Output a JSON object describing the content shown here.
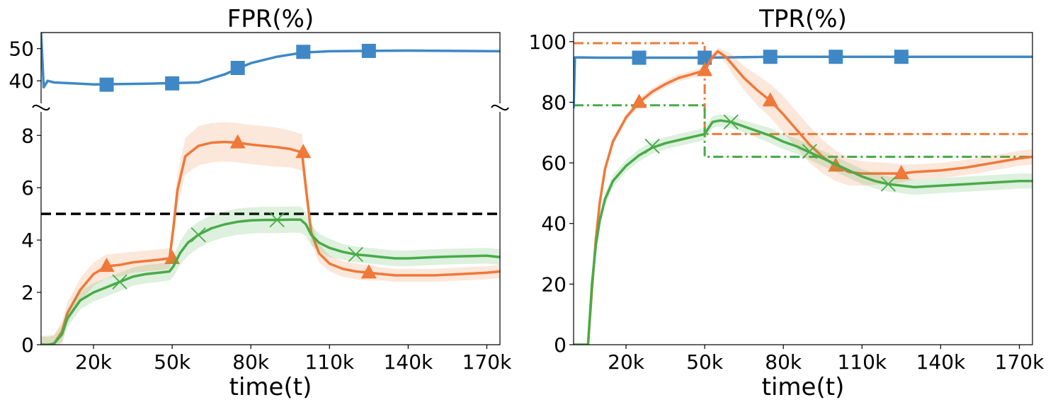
{
  "colors": {
    "blue": "#3f88c5",
    "orange": "#f07838",
    "green": "#48ab48",
    "black": "#000000"
  },
  "chart_data": [
    {
      "type": "line",
      "title": "FPR(%)",
      "xlabel": "time(t)",
      "ylabel": "",
      "broken_y_axis": true,
      "xlim": [
        0,
        175000
      ],
      "x_ticks": [
        20000,
        50000,
        80000,
        110000,
        140000,
        170000
      ],
      "x_tick_labels": [
        "20k",
        "50k",
        "80k",
        "110k",
        "140k",
        "170k"
      ],
      "upper_panel": {
        "ylim": [
          33,
          55
        ],
        "y_ticks": [
          40,
          50
        ],
        "y_tick_labels": [
          "40",
          "50"
        ],
        "series": [
          {
            "color": "blue",
            "marker": "square",
            "x": [
              0,
              1000,
              2500,
              5000,
              10000,
              20000,
              30000,
              40000,
              50000,
              60000,
              70000,
              75000,
              80000,
              90000,
              100000,
              110000,
              125000,
              140000,
              175000
            ],
            "y": [
              55,
              38,
              40,
              39.5,
              39.3,
              38.9,
              39,
              39.1,
              39.3,
              39.5,
              42,
              43.8,
              45.5,
              47.5,
              48.8,
              49.2,
              49.3,
              49.4,
              49.2
            ],
            "marker_x": [
              25000,
              50000,
              75000,
              100000,
              125000
            ],
            "marker_y": [
              38.8,
              39.2,
              44,
              49,
              49.3
            ]
          }
        ]
      },
      "lower_panel": {
        "ylim": [
          0,
          8.9
        ],
        "y_ticks": [
          0,
          2,
          4,
          6,
          8
        ],
        "y_tick_labels": [
          "0",
          "2",
          "4",
          "6",
          "8"
        ],
        "reference_line": {
          "y": 5,
          "color": "black",
          "style": "dashed"
        },
        "series": [
          {
            "color": "orange",
            "marker": "triangle",
            "x": [
              0,
              3000,
              5000,
              8000,
              10000,
              15000,
              20000,
              25000,
              30000,
              35000,
              40000,
              45000,
              49000,
              50500,
              52000,
              55000,
              60000,
              65000,
              70000,
              75000,
              80000,
              85000,
              90000,
              95000,
              99500,
              101000,
              103000,
              106000,
              110000,
              115000,
              120000,
              125000,
              130000,
              135000,
              140000,
              150000,
              160000,
              170000,
              175000
            ],
            "y": [
              0,
              0,
              0.05,
              0.5,
              1.2,
              2.1,
              2.7,
              3.0,
              3.05,
              3.15,
              3.2,
              3.25,
              3.3,
              4.5,
              5.9,
              7.2,
              7.6,
              7.72,
              7.75,
              7.72,
              7.65,
              7.6,
              7.55,
              7.48,
              7.35,
              6.0,
              4.3,
              3.5,
              3.1,
              2.9,
              2.8,
              2.75,
              2.7,
              2.65,
              2.65,
              2.65,
              2.7,
              2.75,
              2.8
            ],
            "band": [
              0.35,
              0.35,
              0.35,
              0.4,
              0.4,
              0.45,
              0.45,
              0.45,
              0.45,
              0.4,
              0.4,
              0.4,
              0.4,
              0.5,
              0.6,
              0.7,
              0.75,
              0.75,
              0.75,
              0.75,
              0.75,
              0.75,
              0.75,
              0.7,
              0.7,
              0.5,
              0.4,
              0.35,
              0.3,
              0.3,
              0.3,
              0.3,
              0.25,
              0.25,
              0.25,
              0.25,
              0.25,
              0.25,
              0.25
            ],
            "marker_x": [
              25000,
              50000,
              75000,
              100000,
              125000
            ],
            "marker_y": [
              3.0,
              3.3,
              7.72,
              7.35,
              2.75
            ]
          },
          {
            "color": "green",
            "marker": "x",
            "x": [
              0,
              3000,
              5000,
              8000,
              10000,
              15000,
              20000,
              25000,
              30000,
              35000,
              40000,
              45000,
              49000,
              50500,
              53000,
              56000,
              60000,
              65000,
              70000,
              75000,
              80000,
              85000,
              90000,
              95000,
              99000,
              101000,
              103000,
              106000,
              110000,
              115000,
              120000,
              125000,
              130000,
              135000,
              140000,
              150000,
              160000,
              170000,
              175000
            ],
            "y": [
              0,
              0,
              0.05,
              0.4,
              1.0,
              1.7,
              2.0,
              2.2,
              2.4,
              2.6,
              2.7,
              2.75,
              2.8,
              3.0,
              3.5,
              3.9,
              4.2,
              4.45,
              4.6,
              4.7,
              4.75,
              4.77,
              4.77,
              4.78,
              4.78,
              4.6,
              4.2,
              3.9,
              3.7,
              3.55,
              3.45,
              3.4,
              3.35,
              3.3,
              3.3,
              3.35,
              3.38,
              3.4,
              3.35
            ],
            "band": [
              0.3,
              0.3,
              0.3,
              0.35,
              0.35,
              0.35,
              0.35,
              0.35,
              0.35,
              0.35,
              0.35,
              0.35,
              0.35,
              0.4,
              0.45,
              0.5,
              0.5,
              0.5,
              0.5,
              0.5,
              0.5,
              0.5,
              0.5,
              0.5,
              0.5,
              0.45,
              0.4,
              0.35,
              0.35,
              0.3,
              0.3,
              0.3,
              0.3,
              0.3,
              0.3,
              0.3,
              0.3,
              0.3,
              0.3
            ],
            "marker_x": [
              30000,
              60000,
              90000,
              120000
            ],
            "marker_y": [
              2.4,
              4.2,
              4.77,
              3.45
            ]
          }
        ]
      }
    },
    {
      "type": "line",
      "title": "TPR(%)",
      "xlabel": "time(t)",
      "ylabel": "",
      "xlim": [
        0,
        175000
      ],
      "ylim": [
        0,
        103
      ],
      "x_ticks": [
        20000,
        50000,
        80000,
        110000,
        140000,
        170000
      ],
      "x_tick_labels": [
        "20k",
        "50k",
        "80k",
        "110k",
        "140k",
        "170k"
      ],
      "y_ticks": [
        0,
        20,
        40,
        60,
        80,
        100
      ],
      "y_tick_labels": [
        "0",
        "20",
        "40",
        "60",
        "80",
        "100"
      ],
      "series": [
        {
          "color": "blue",
          "marker": "square",
          "x": [
            0,
            500,
            1500,
            10000,
            25000,
            50000,
            75000,
            100000,
            125000,
            150000,
            175000
          ],
          "y": [
            78,
            94.8,
            94.8,
            94.7,
            94.7,
            94.7,
            95,
            95,
            95,
            95,
            95
          ],
          "marker_x": [
            25000,
            50000,
            75000,
            100000,
            125000
          ],
          "marker_y": [
            94.7,
            94.7,
            95,
            95,
            95
          ]
        },
        {
          "color": "orange",
          "marker": "triangle",
          "x": [
            0,
            4000,
            5500,
            7000,
            8500,
            10000,
            12000,
            15000,
            20000,
            25000,
            30000,
            35000,
            40000,
            45000,
            50000,
            53000,
            55000,
            58000,
            60000,
            65000,
            70000,
            75000,
            80000,
            85000,
            90000,
            95000,
            100000,
            105000,
            110000,
            120000,
            125000,
            130000,
            140000,
            150000,
            160000,
            170000,
            175000
          ],
          "y": [
            0,
            0,
            0,
            18,
            35,
            47,
            58,
            67,
            75,
            80,
            83.5,
            86,
            88,
            89.2,
            90.5,
            95,
            96.8,
            95,
            93,
            88,
            84,
            80.5,
            76,
            71,
            66,
            62,
            59,
            57,
            56.5,
            56.5,
            56.5,
            57,
            57.5,
            58.5,
            60,
            61.5,
            62
          ],
          "band": [
            0,
            0,
            0,
            1,
            1.2,
            1.2,
            1.2,
            1.2,
            1.2,
            1.2,
            1.2,
            1.2,
            1.2,
            1.2,
            1.2,
            1.2,
            1.2,
            2,
            3,
            4,
            5,
            5.5,
            6,
            6,
            6,
            5.5,
            5,
            4.5,
            4,
            3.5,
            3,
            2.5,
            2.5,
            2.5,
            2.5,
            2.5,
            2.5
          ],
          "marker_x": [
            25000,
            50000,
            75000,
            100000,
            125000
          ],
          "marker_y": [
            80,
            90.5,
            80.5,
            59,
            56.5
          ]
        },
        {
          "color": "green",
          "marker": "x",
          "x": [
            0,
            4000,
            5500,
            7000,
            8500,
            10000,
            12000,
            15000,
            20000,
            25000,
            30000,
            35000,
            40000,
            45000,
            50000,
            51500,
            53000,
            56000,
            60000,
            65000,
            70000,
            75000,
            80000,
            85000,
            90000,
            95000,
            100000,
            105000,
            110000,
            115000,
            120000,
            125000,
            130000,
            140000,
            150000,
            160000,
            170000,
            175000
          ],
          "y": [
            0,
            0,
            0,
            20,
            33,
            41,
            48,
            54,
            59,
            62.5,
            65,
            66.5,
            67.5,
            68.5,
            69.5,
            71.5,
            73.5,
            74,
            73.5,
            72,
            70.5,
            69,
            67,
            65.5,
            63.5,
            61.5,
            59.5,
            57.5,
            55.5,
            54,
            53,
            52.5,
            52,
            52.5,
            53,
            53.5,
            54,
            54
          ],
          "band": [
            0,
            0,
            0,
            1.5,
            1.8,
            2,
            2,
            2,
            2,
            2,
            2,
            2,
            2,
            2,
            2,
            2,
            2,
            2,
            2,
            2,
            2.2,
            2.5,
            2.5,
            2.5,
            2.5,
            2.5,
            2.5,
            2.5,
            2.5,
            2.5,
            2.5,
            2.5,
            2.5,
            2.5,
            2.5,
            2.5,
            2.5,
            2.5
          ],
          "marker_x": [
            30000,
            60000,
            90000,
            120000
          ],
          "marker_y": [
            65.5,
            73.5,
            63.8,
            53
          ]
        }
      ],
      "reference_lines": [
        {
          "color": "orange",
          "style": "dashdot",
          "x": [
            0,
            50000,
            50000,
            175000
          ],
          "y": [
            99.5,
            99.5,
            69.5,
            69.5
          ]
        },
        {
          "color": "green",
          "style": "dashdot",
          "x": [
            0,
            50000,
            50000,
            175000
          ],
          "y": [
            79,
            79,
            62,
            62
          ]
        }
      ]
    }
  ]
}
